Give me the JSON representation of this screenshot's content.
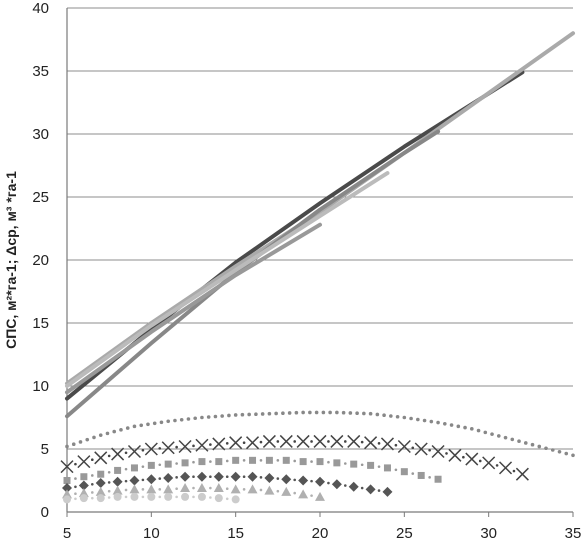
{
  "chart_data": {
    "type": "line",
    "title": "",
    "xlabel": "",
    "ylabel": "СПС, м²*га-1; Δср, м³ *га-1",
    "xlim": [
      5,
      35
    ],
    "ylim": [
      0,
      40
    ],
    "xticks": [
      5,
      10,
      15,
      20,
      25,
      30,
      35
    ],
    "yticks": [
      0,
      5,
      10,
      15,
      20,
      25,
      30,
      35,
      40
    ],
    "grid": "horizontal",
    "legend": "none",
    "series": [
      {
        "style": "solid",
        "color": "#4a4a4a",
        "width": 4,
        "x": [
          5,
          10,
          15,
          20,
          25,
          32
        ],
        "y": [
          9.0,
          14.5,
          19.8,
          24.5,
          29.0,
          34.9
        ]
      },
      {
        "style": "solid",
        "color": "#aaaaaa",
        "width": 4,
        "x": [
          5,
          10,
          15,
          20,
          25,
          35
        ],
        "y": [
          10.2,
          15.0,
          19.5,
          23.8,
          28.5,
          38.0
        ]
      },
      {
        "style": "solid",
        "color": "#888888",
        "width": 4,
        "x": [
          5,
          10,
          15,
          20,
          25,
          27
        ],
        "y": [
          7.6,
          13.4,
          19.0,
          24.0,
          28.5,
          30.2
        ]
      },
      {
        "style": "solid",
        "color": "#bbbbbb",
        "width": 4,
        "x": [
          5,
          10,
          15,
          20,
          24
        ],
        "y": [
          10.0,
          14.8,
          19.2,
          23.5,
          26.9
        ]
      },
      {
        "style": "solid",
        "color": "#999999",
        "width": 4,
        "x": [
          5,
          10,
          15,
          20
        ],
        "y": [
          9.5,
          14.3,
          18.8,
          22.8
        ]
      },
      {
        "style": "dots",
        "color": "#888888",
        "marker": "dot",
        "x": [
          5,
          7,
          9,
          11,
          13,
          15,
          17,
          19,
          21,
          23,
          25,
          27,
          29,
          31,
          33,
          35
        ],
        "y": [
          5.2,
          6.1,
          6.8,
          7.2,
          7.5,
          7.7,
          7.8,
          7.9,
          7.9,
          7.8,
          7.5,
          7.1,
          6.6,
          5.9,
          5.2,
          4.5
        ]
      },
      {
        "style": "markers",
        "color": "#444444",
        "marker": "x",
        "x": [
          5,
          6,
          7,
          8,
          9,
          10,
          11,
          12,
          13,
          14,
          15,
          16,
          17,
          18,
          19,
          20,
          21,
          22,
          23,
          24,
          25,
          26,
          27,
          28,
          29,
          30,
          31,
          32
        ],
        "y": [
          3.6,
          4.0,
          4.3,
          4.6,
          4.8,
          5.0,
          5.1,
          5.2,
          5.3,
          5.4,
          5.5,
          5.5,
          5.6,
          5.6,
          5.6,
          5.6,
          5.6,
          5.6,
          5.5,
          5.4,
          5.2,
          5.0,
          4.8,
          4.5,
          4.2,
          3.9,
          3.5,
          3.0
        ]
      },
      {
        "style": "markers",
        "color": "#999999",
        "marker": "square",
        "x": [
          5,
          6,
          7,
          8,
          9,
          10,
          11,
          12,
          13,
          14,
          15,
          16,
          17,
          18,
          19,
          20,
          21,
          22,
          23,
          24,
          25,
          26,
          27
        ],
        "y": [
          2.5,
          2.8,
          3.0,
          3.3,
          3.5,
          3.7,
          3.8,
          3.9,
          4.0,
          4.0,
          4.1,
          4.1,
          4.1,
          4.1,
          4.0,
          4.0,
          3.9,
          3.8,
          3.7,
          3.5,
          3.2,
          2.9,
          2.6
        ]
      },
      {
        "style": "markers",
        "color": "#555555",
        "marker": "diamond",
        "x": [
          5,
          6,
          7,
          8,
          9,
          10,
          11,
          12,
          13,
          14,
          15,
          16,
          17,
          18,
          19,
          20,
          21,
          22,
          23,
          24
        ],
        "y": [
          1.9,
          2.1,
          2.3,
          2.4,
          2.5,
          2.6,
          2.7,
          2.8,
          2.8,
          2.8,
          2.8,
          2.8,
          2.7,
          2.6,
          2.5,
          2.4,
          2.2,
          2.0,
          1.8,
          1.6
        ]
      },
      {
        "style": "markers",
        "color": "#b0b0b0",
        "marker": "triangle",
        "x": [
          5,
          6,
          7,
          8,
          9,
          10,
          11,
          12,
          13,
          14,
          15,
          16,
          17,
          18,
          19,
          20
        ],
        "y": [
          1.4,
          1.5,
          1.6,
          1.7,
          1.8,
          1.8,
          1.8,
          1.9,
          1.9,
          1.9,
          1.8,
          1.8,
          1.7,
          1.6,
          1.4,
          1.2
        ]
      },
      {
        "style": "markers",
        "color": "#cccccc",
        "marker": "circle",
        "x": [
          5,
          6,
          7,
          8,
          9,
          10,
          11,
          12,
          13,
          14,
          15
        ],
        "y": [
          1.0,
          1.1,
          1.1,
          1.2,
          1.2,
          1.2,
          1.2,
          1.2,
          1.2,
          1.1,
          1.0
        ]
      }
    ]
  }
}
